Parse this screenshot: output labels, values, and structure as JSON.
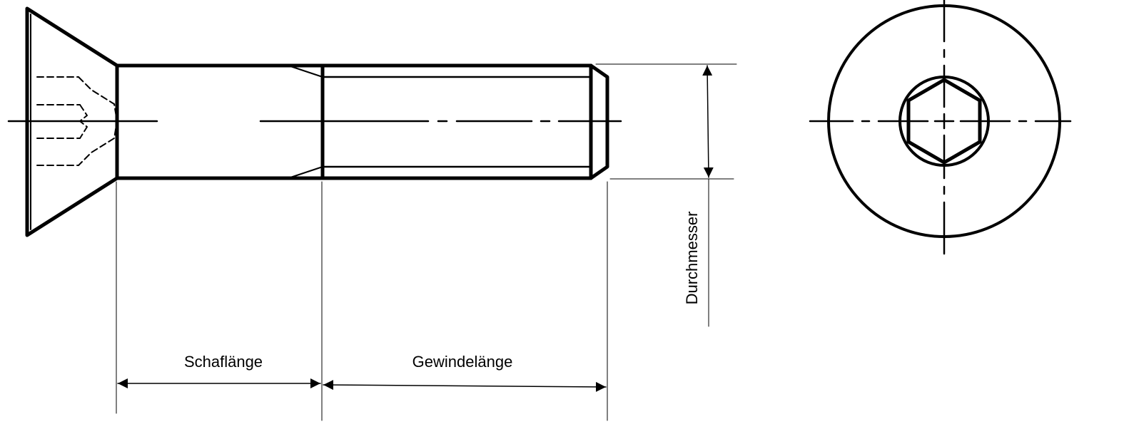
{
  "labels": {
    "shaft_length": "Schaflänge",
    "thread_length": "Gewindelänge",
    "diameter": "Durchmesser"
  },
  "colors": {
    "line": "#000000",
    "background": "#ffffff"
  }
}
